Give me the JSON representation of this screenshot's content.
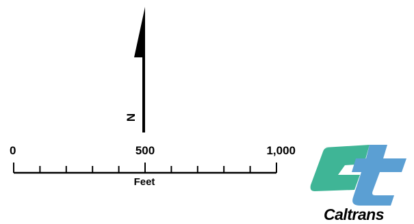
{
  "north_arrow": {
    "label": "N",
    "icon": "north-arrow-icon"
  },
  "scale_bar": {
    "labels": [
      "0",
      "500",
      "1,000"
    ],
    "values": [
      0,
      500,
      1000
    ],
    "minor_divisions": 10,
    "unit": "Feet"
  },
  "logo": {
    "name": "Caltrans",
    "icon": "caltrans-ct-logo-icon",
    "colors": {
      "c_shape": "#3fb596",
      "t_shape": "#5b9fd3"
    }
  },
  "colors": {
    "ink": "#000000",
    "background": "#ffffff"
  }
}
